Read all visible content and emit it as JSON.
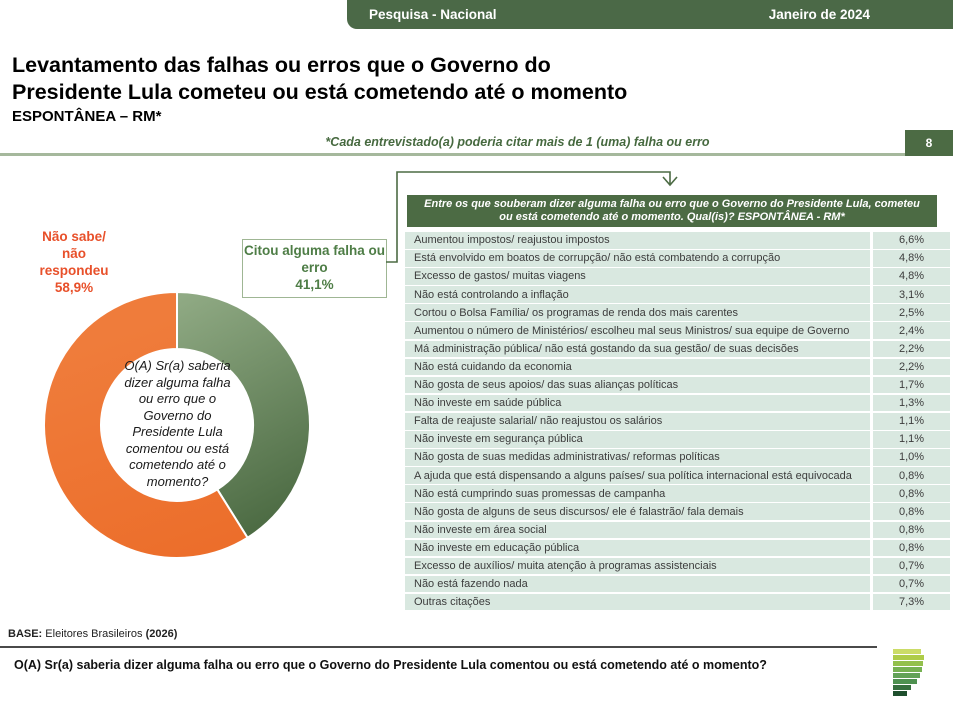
{
  "header": {
    "left": "Pesquisa - Nacional",
    "right": "Janeiro de 2024"
  },
  "title": {
    "line1": "Levantamento das falhas ou erros que o Governo do",
    "line2": "Presidente Lula cometeu ou está cometendo até o momento",
    "line3": "ESPONTÂNEA – RM*"
  },
  "note": "*Cada entrevistado(a) poderia citar mais de 1 (uma) falha ou erro",
  "page_number": "8",
  "donut": {
    "no_answer_label": "Não sabe/\nnão\nrespondeu\n58,9%",
    "cited_label": "Citou alguma falha ou\nerro\n41,1%",
    "center_question": "O(A) Sr(a) saberia\ndizer alguma falha\nou erro que o\nGoverno do\nPresidente Lula\ncomentou ou está\ncometendo até o\nmomento?"
  },
  "chart_data": [
    {
      "type": "pie",
      "labels": [
        "Citou alguma falha ou erro",
        "Não sabe/ não respondeu"
      ],
      "values": [
        41.1,
        58.9
      ],
      "colors": [
        "#6E8F60",
        "#ED7031"
      ],
      "center_text": "O(A) Sr(a) saberia dizer alguma falha ou erro que o Governo do Presidente Lula comentou ou está cometendo até o momento?",
      "donut": true,
      "start_angle_deg": 0,
      "direction": "clockwise"
    },
    {
      "type": "table",
      "title": "Entre os que souberam dizer alguma falha ou erro que o Governo do Presidente Lula, cometeu ou está cometendo até o momento. Qual(is)? ESPONTÂNEA - RM*",
      "categories": [
        "Aumentou impostos/ reajustou impostos",
        "Está envolvido em boatos de corrupção/ não está combatendo a corrupção",
        "Excesso de gastos/ muitas viagens",
        "Não está controlando a inflação",
        "Cortou o Bolsa Família/ os programas de renda dos mais carentes",
        "Aumentou o número de Ministérios/ escolheu mal seus Ministros/ sua equipe de Governo",
        "Má administração pública/ não está gostando da sua gestão/ de suas decisões",
        "Não está cuidando da economia",
        "Não gosta de seus apoios/ das suas alianças políticas",
        "Não investe em saúde pública",
        "Falta de reajuste salarial/ não reajustou os salários",
        "Não investe em segurança pública",
        "Não gosta de suas medidas administrativas/ reformas políticas",
        "A ajuda que está dispensando a alguns países/ sua política internacional está equivocada",
        "Não está cumprindo suas promessas de campanha",
        "Não gosta de alguns de seus discursos/ ele é falastrão/ fala demais",
        "Não investe em área social",
        "Não investe em educação pública",
        "Excesso de auxílios/ muita atenção à programas assistenciais",
        "Não está fazendo nada",
        "Outras citações"
      ],
      "values": [
        6.6,
        4.8,
        4.8,
        3.1,
        2.5,
        2.4,
        2.2,
        2.2,
        1.7,
        1.3,
        1.1,
        1.1,
        1.0,
        0.8,
        0.8,
        0.8,
        0.8,
        0.8,
        0.7,
        0.7,
        7.3
      ],
      "value_suffix": "%"
    }
  ],
  "table": {
    "header": "Entre os que souberam dizer alguma falha ou erro que o Governo do Presidente Lula, cometeu ou está cometendo até o momento. Qual(is)? ESPONTÂNEA - RM*"
  },
  "footer": {
    "base_label": "BASE:",
    "base_text": " Eleitores Brasileiros ",
    "base_year": "(2026)",
    "question": "O(A) Sr(a) saberia dizer alguma falha ou erro que o Governo do Presidente Lula comentou ou está cometendo até o momento?"
  },
  "colors": {
    "accent_green": "#4C6B44",
    "topbar_green": "#4B6947",
    "row_mint": "#D9E8E0",
    "pie_orange": "#ED7031",
    "pie_green": "#6E8F60",
    "no_answer_red": "#E8502A",
    "cited_green": "#4E7D46",
    "rule_sage": "#A5B89C"
  },
  "logo": {
    "bars": [
      {
        "color": "#CBDC67",
        "width": 28
      },
      {
        "color": "#AECC48",
        "width": 31
      },
      {
        "color": "#93C04C",
        "width": 30
      },
      {
        "color": "#76B152",
        "width": 29
      },
      {
        "color": "#62A257",
        "width": 27
      },
      {
        "color": "#4E9150",
        "width": 24
      },
      {
        "color": "#366F3E",
        "width": 18
      },
      {
        "color": "#1E4F2D",
        "width": 14
      }
    ]
  }
}
